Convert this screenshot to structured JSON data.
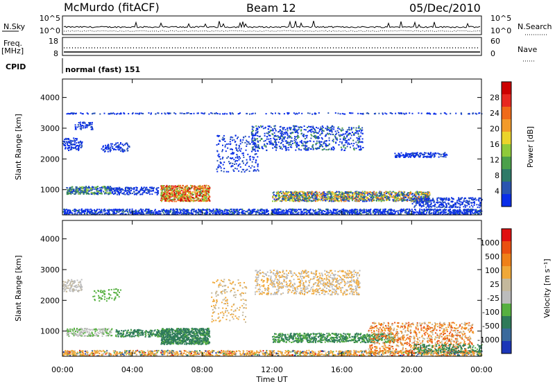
{
  "header": {
    "site": "McMurdo (fitACF)",
    "beam": "Beam 12",
    "date": "05/Dec/2010"
  },
  "top_panels": {
    "nsky_label": "N.Sky",
    "nsky_ticks": [
      "10^5",
      "10^0"
    ],
    "nsearch_label": "N.Search",
    "nsearch_ticks": [
      "10^5",
      "10^0"
    ],
    "freq_label": "Freq.",
    "freq_unit": "[MHz]",
    "freq_ticks": [
      "18",
      "8"
    ],
    "nave_label": "Nave",
    "nave_ticks": [
      "60",
      "0"
    ],
    "cpid_label": "CPID",
    "cpid_text": "normal (fast) 151"
  },
  "chart_data": [
    {
      "type": "heatmap",
      "name": "power-panel",
      "ylabel": "Slant Range [km]",
      "ylim": [
        180,
        4600
      ],
      "yticks": [
        "1000",
        "2000",
        "3000",
        "4000"
      ],
      "xticks": [
        "00:00",
        "04:00",
        "08:00",
        "12:00",
        "16:00",
        "20:00",
        "00:00"
      ],
      "colorbar": {
        "label": "Power [dB]",
        "ticks": [
          "4",
          "8",
          "12",
          "16",
          "20",
          "24",
          "28"
        ],
        "colors": [
          "#0a2ee8",
          "#2a55b0",
          "#2e7a68",
          "#4ba04a",
          "#8fca3a",
          "#ebd42b",
          "#f29a2a",
          "#f06a18",
          "#e82820",
          "#cc0000"
        ]
      }
    },
    {
      "type": "heatmap",
      "name": "velocity-panel",
      "ylabel": "Slant Range [km]",
      "xlabel": "Time UT",
      "ylim": [
        180,
        4600
      ],
      "yticks": [
        "1000",
        "2000",
        "3000",
        "4000"
      ],
      "xticks": [
        "00:00",
        "04:00",
        "08:00",
        "12:00",
        "16:00",
        "20:00",
        "00:00"
      ],
      "colorbar": {
        "label": "Velocity [m s⁻¹]",
        "ticks": [
          "1000",
          "500",
          "100",
          "25",
          "-25",
          "-100",
          "-500",
          "-1000"
        ],
        "colors": [
          "#1c36b8",
          "#3a6a9c",
          "#2e7a5a",
          "#56b040",
          "#bcbcbc",
          "#c4b89c",
          "#f0a838",
          "#ef8018",
          "#ea5010",
          "#e01010"
        ]
      }
    }
  ]
}
